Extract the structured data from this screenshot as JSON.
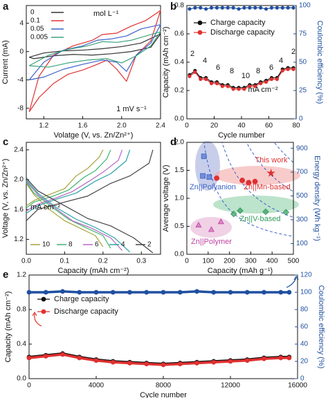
{
  "chart_data": [
    {
      "panel": "a",
      "type": "line",
      "xlabel": "Volatge (V, vs. Zn/Zn²⁺)",
      "ylabel": "Current (mA)",
      "xlim": [
        1.02,
        2.4
      ],
      "ylim": [
        -9.5,
        6.5
      ],
      "xticks": [
        1.2,
        1.6,
        {
          "value": 2,
          "label": "2.0"
        },
        2.4
      ],
      "yticks": [
        -8,
        -4,
        0,
        4
      ],
      "legend_title": "mol L⁻¹",
      "annotations": [
        "1 mV s⁻¹"
      ],
      "series": [
        {
          "name": "0",
          "color": "#333333",
          "x": [
            1.05,
            1.2,
            1.4,
            1.6,
            1.8,
            2.0,
            2.2,
            2.4,
            2.3,
            2.1,
            1.9,
            1.7,
            1.5,
            1.3,
            1.1,
            1.05
          ],
          "values": [
            -0.8,
            -0.2,
            0.1,
            0.2,
            0.4,
            0.7,
            1.2,
            2.5,
            0.6,
            0,
            -0.3,
            -0.5,
            -0.4,
            -0.6,
            -1,
            -0.8
          ]
        },
        {
          "name": "0.1",
          "color": "#e03030",
          "x": [
            1.05,
            1.15,
            1.3,
            1.5,
            1.7,
            1.8,
            1.95,
            2.1,
            2.25,
            2.4,
            2.3,
            2.15,
            2.05,
            1.95,
            1.85,
            1.75,
            1.6,
            1.45,
            1.3,
            1.15,
            1.05
          ],
          "values": [
            -8.5,
            -3.5,
            -0.5,
            0.8,
            1.6,
            2.4,
            2.6,
            3.6,
            4.4,
            5.8,
            1.5,
            -0.5,
            -4.2,
            -2.5,
            -1.2,
            -1.8,
            -2.6,
            -3.2,
            -4.5,
            -6.5,
            -8.5
          ]
        },
        {
          "name": "0.05",
          "color": "#3a62c8",
          "x": [
            1.05,
            1.2,
            1.4,
            1.6,
            1.75,
            1.9,
            2.05,
            2.2,
            2.4,
            2.3,
            2.15,
            2.05,
            1.95,
            1.8,
            1.6,
            1.4,
            1.2,
            1.05
          ],
          "values": [
            -4,
            -1.5,
            0.2,
            0.8,
            1.6,
            1.8,
            2.2,
            3.2,
            3.8,
            1.2,
            -0.5,
            -2.8,
            -1.5,
            -1.2,
            -1.8,
            -2.5,
            -3.6,
            -4
          ]
        },
        {
          "name": "0.005",
          "color": "#3aa37a",
          "x": [
            1.05,
            1.25,
            1.45,
            1.65,
            1.8,
            1.95,
            2.1,
            2.25,
            2.4,
            2.3,
            2.15,
            2.0,
            1.85,
            1.65,
            1.45,
            1.25,
            1.05
          ],
          "values": [
            -2,
            -0.5,
            0.3,
            0.8,
            1.4,
            1.3,
            1.6,
            2.2,
            2.8,
            0.8,
            -0.6,
            -1.6,
            -1,
            -1.2,
            -1.6,
            -2.2,
            -2
          ]
        }
      ]
    },
    {
      "panel": "b",
      "type": "line",
      "xlabel": "Cycle number",
      "ylabel": "Capacity (mAh cm⁻²)",
      "y2label": "Coulombic efficiency (%)",
      "xlim": [
        0,
        80
      ],
      "ylim": [
        0,
        0.8
      ],
      "y2lim": [
        0,
        100
      ],
      "xticks": [
        0,
        20,
        40,
        60,
        80
      ],
      "yticks": [
        {
          "value": 0,
          "label": "0.0"
        },
        0.2,
        0.4,
        0.6,
        0.8
      ],
      "y2ticks": [
        0,
        25,
        50,
        75,
        100
      ],
      "annotations": [
        "2",
        "4",
        "6",
        "8",
        "10",
        "8",
        "6",
        "4",
        "2",
        "mA cm⁻²"
      ],
      "series": [
        {
          "name": "Charge capacity",
          "color": "#111111",
          "marker": "circle",
          "x": [
            2,
            6,
            10,
            14,
            18,
            22,
            26,
            30,
            34,
            38,
            42,
            46,
            50,
            54,
            58,
            62,
            66,
            70,
            74,
            78
          ],
          "values": [
            0.31,
            0.34,
            0.29,
            0.29,
            0.26,
            0.26,
            0.24,
            0.24,
            0.22,
            0.22,
            0.22,
            0.24,
            0.24,
            0.26,
            0.27,
            0.29,
            0.29,
            0.35,
            0.36,
            0.36
          ]
        },
        {
          "name": "Discharge capacity",
          "color": "#e03030",
          "marker": "circle",
          "x": [
            2,
            6,
            10,
            14,
            18,
            22,
            26,
            30,
            34,
            38,
            42,
            46,
            50,
            54,
            58,
            62,
            66,
            70,
            74,
            78
          ],
          "values": [
            0.3,
            0.33,
            0.28,
            0.28,
            0.25,
            0.25,
            0.23,
            0.23,
            0.21,
            0.21,
            0.21,
            0.23,
            0.23,
            0.25,
            0.26,
            0.28,
            0.28,
            0.34,
            0.35,
            0.35
          ]
        },
        {
          "color": "#1f4fa0",
          "marker": "circle",
          "axis": "y2",
          "x": [
            2,
            6,
            10,
            14,
            18,
            22,
            26,
            30,
            34,
            38,
            42,
            46,
            50,
            54,
            58,
            62,
            66,
            70,
            74,
            78
          ],
          "values": [
            97,
            98,
            98,
            97,
            98,
            98,
            98,
            98,
            98,
            97,
            98,
            98,
            98,
            98,
            97,
            98,
            98,
            98,
            98,
            98
          ]
        }
      ]
    },
    {
      "panel": "c",
      "type": "line",
      "xlabel": "Capacity (mAh cm⁻²)",
      "ylabel": "Voltage (V, vs. Zn/Zn²⁺)",
      "xlim": [
        0,
        0.35
      ],
      "ylim": [
        1.0,
        2.5
      ],
      "xticks": [
        {
          "value": 0,
          "label": "0.0"
        },
        0.1,
        0.2,
        0.3
      ],
      "yticks": [
        1.2,
        1.6,
        {
          "value": 2,
          "label": "2.0"
        },
        2.4
      ],
      "legend_title": "mA cm⁻²",
      "series": [
        {
          "name": "10",
          "color": "#a6a33a",
          "x": [
            0,
            0.02,
            0.06,
            0.1,
            0.13,
            0.16,
            0.19,
            0.2,
            null,
            0,
            0.02,
            0.06,
            0.1,
            0.14,
            0.18,
            0.2
          ],
          "values": [
            1.65,
            1.72,
            1.8,
            1.88,
            2.05,
            2.15,
            2.3,
            2.4,
            null,
            1.95,
            1.8,
            1.6,
            1.45,
            1.35,
            1.25,
            1.1
          ]
        },
        {
          "name": "8",
          "color": "#3cb371",
          "x": [
            0,
            0.02,
            0.07,
            0.11,
            0.15,
            0.18,
            0.21,
            0.22,
            null,
            0,
            0.02,
            0.07,
            0.11,
            0.15,
            0.2,
            0.22
          ],
          "values": [
            1.62,
            1.7,
            1.78,
            1.86,
            2.03,
            2.12,
            2.28,
            2.4,
            null,
            1.97,
            1.82,
            1.62,
            1.47,
            1.37,
            1.25,
            1.08
          ]
        },
        {
          "name": "6",
          "color": "#b565c4",
          "x": [
            0,
            0.03,
            0.08,
            0.12,
            0.17,
            0.2,
            0.24,
            0.25,
            null,
            0,
            0.03,
            0.08,
            0.12,
            0.17,
            0.22,
            0.25
          ],
          "values": [
            1.58,
            1.67,
            1.76,
            1.84,
            2.0,
            2.1,
            2.26,
            2.4,
            null,
            1.98,
            1.8,
            1.6,
            1.45,
            1.35,
            1.22,
            1.05
          ]
        },
        {
          "name": "4",
          "color": "#2aa3a3",
          "x": [
            0,
            0.03,
            0.08,
            0.13,
            0.18,
            0.22,
            0.26,
            0.27,
            null,
            0,
            0.03,
            0.08,
            0.13,
            0.18,
            0.23,
            0.27
          ],
          "values": [
            1.55,
            1.65,
            1.74,
            1.82,
            1.98,
            2.08,
            2.25,
            2.4,
            null,
            2.0,
            1.82,
            1.62,
            1.47,
            1.36,
            1.22,
            1.03
          ]
        },
        {
          "name": "2",
          "color": "#444444",
          "x": [
            0,
            0.03,
            0.1,
            0.16,
            0.22,
            0.27,
            0.32,
            0.33,
            null,
            0,
            0.03,
            0.1,
            0.16,
            0.22,
            0.28,
            0.33
          ],
          "values": [
            1.45,
            1.6,
            1.7,
            1.78,
            1.95,
            2.05,
            2.22,
            2.4,
            null,
            2.02,
            1.85,
            1.65,
            1.48,
            1.38,
            1.22,
            1.02
          ]
        }
      ]
    },
    {
      "panel": "d",
      "type": "scatter",
      "xlabel": "Capacity (mAh g⁻¹)",
      "ylabel": "Average voltage (V)",
      "y2label": "Energy density (Wh kg⁻¹)",
      "xlim": [
        0,
        500
      ],
      "ylim": [
        0,
        2.0
      ],
      "y2lim": [
        10,
        950
      ],
      "xticks": [
        0,
        100,
        200,
        300,
        400,
        500
      ],
      "yticks": [
        {
          "value": 0,
          "label": "0.0"
        },
        0.5,
        {
          "value": 1,
          "label": "1.0"
        },
        1.5,
        {
          "value": 2,
          "label": "2.0"
        }
      ],
      "y2ticks": [
        100,
        300,
        500,
        700,
        900
      ],
      "series": [
        {
          "name": "Zn||Polyanion",
          "color": "#3a62c8",
          "marker": "square",
          "x": [
            80,
            75,
            105
          ],
          "values": [
            1.75,
            1.4,
            1.38
          ]
        },
        {
          "name": "Zn||Mn-based",
          "color": "#e03030",
          "marker": "circle",
          "x": [
            140,
            260,
            290,
            320
          ],
          "values": [
            1.36,
            1.32,
            1.28,
            1.3
          ]
        },
        {
          "name": "This work",
          "color": "#e03030",
          "marker": "star",
          "x": [
            395
          ],
          "values": [
            1.45
          ]
        },
        {
          "name": "Zn||V-based",
          "color": "#2e9a5a",
          "marker": "diamond",
          "x": [
            220,
            250,
            370,
            465
          ],
          "values": [
            0.72,
            0.78,
            0.76,
            0.75
          ]
        },
        {
          "name": "Zn||Polymer",
          "color": "#c040a0",
          "marker": "triangle",
          "x": [
            55,
            115,
            160
          ],
          "values": [
            0.52,
            0.44,
            0.58
          ]
        }
      ]
    },
    {
      "panel": "e",
      "type": "line",
      "xlabel": "Cycle number",
      "ylabel": "Capacity (mAh cm⁻²)",
      "y2label": "Coulombic efficiency (%)",
      "xlim": [
        0,
        16000
      ],
      "ylim": [
        0,
        1.2
      ],
      "y2lim": [
        0,
        120
      ],
      "xticks": [
        0,
        4000,
        8000,
        12000,
        16000
      ],
      "yticks": [
        {
          "value": 0,
          "label": "0.0"
        },
        0.4,
        0.8,
        1.2
      ],
      "y2ticks": [
        0,
        20,
        40,
        60,
        80,
        100,
        120
      ],
      "series": [
        {
          "name": "Charge capacity",
          "color": "#111111",
          "marker": "circle",
          "x": [
            0,
            1000,
            2000,
            3000,
            4000,
            5000,
            6000,
            7000,
            8000,
            9000,
            10000,
            11000,
            12000,
            13000,
            14000,
            15000,
            15500
          ],
          "values": [
            0.25,
            0.27,
            0.29,
            0.25,
            0.22,
            0.2,
            0.19,
            0.18,
            0.17,
            0.18,
            0.19,
            0.2,
            0.21,
            0.22,
            0.24,
            0.25,
            0.25
          ]
        },
        {
          "name": "Discharge capacity",
          "color": "#e03030",
          "marker": "circle",
          "x": [
            0,
            1000,
            2000,
            3000,
            4000,
            5000,
            6000,
            7000,
            8000,
            9000,
            10000,
            11000,
            12000,
            13000,
            14000,
            15000,
            15500
          ],
          "values": [
            0.24,
            0.26,
            0.28,
            0.24,
            0.21,
            0.19,
            0.18,
            0.17,
            0.16,
            0.17,
            0.18,
            0.19,
            0.2,
            0.21,
            0.23,
            0.24,
            0.24
          ]
        },
        {
          "color": "#1f4fa0",
          "marker": "circle",
          "axis": "y2",
          "x": [
            0,
            1000,
            2000,
            3000,
            4000,
            5000,
            6000,
            7000,
            8000,
            9000,
            10000,
            11000,
            12000,
            13000,
            14000,
            15000,
            15500
          ],
          "values": [
            100,
            100,
            101,
            100,
            100,
            100,
            100,
            100,
            100,
            100,
            101,
            100,
            100,
            100,
            100,
            100,
            100
          ]
        }
      ]
    }
  ]
}
